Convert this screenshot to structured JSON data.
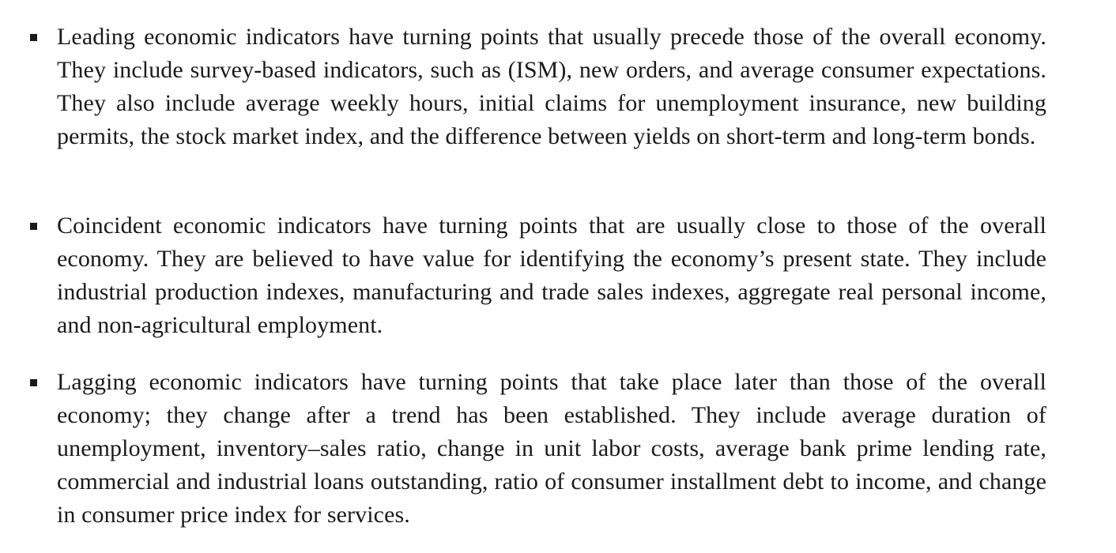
{
  "bullets": [
    {
      "text": "Leading economic indicators have turning points that usually precede those of the overall economy. They include survey-based indicators, such as (ISM), new orders, and average consumer expectations. They also include average weekly hours, initial claims for unemployment insurance, new building permits, the stock market index, and the difference between yields on short-term and long-term bonds."
    },
    {
      "text": "Coincident economic indicators have turning points that are usually close to those of the overall economy. They are believed to have value for identifying the economy’s present state. They include industrial production indexes, manufacturing and trade sales indexes, aggregate real personal income, and non-agricultural employment."
    },
    {
      "text": "Lagging economic indicators have turning points that take place later than those of the overall economy; they change after a trend has been established. They include average duration of unemployment, inventory–sales ratio, change in unit labor costs, average bank prime lending rate, commercial and industrial loans outstanding, ratio of consumer installment debt to income, and change in consumer price index for services."
    }
  ]
}
